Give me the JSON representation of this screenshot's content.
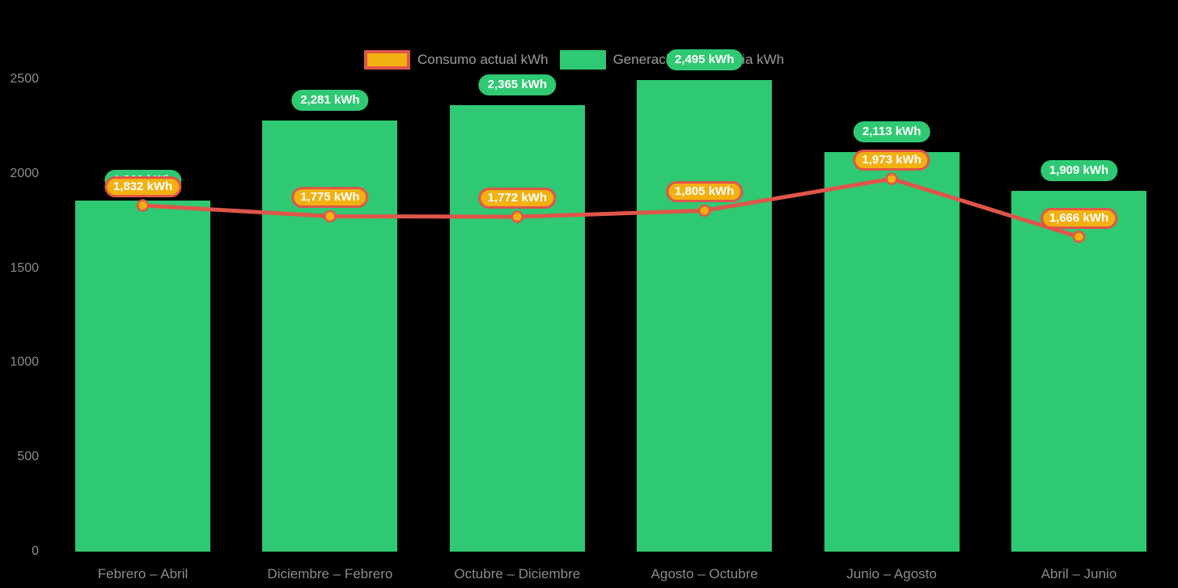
{
  "page": {
    "background": "#000000"
  },
  "legend": {
    "items": [
      {
        "id": "consumo",
        "label": "Consumo actual kWh",
        "swatch_fill": "#F3B011",
        "swatch_border": "#E0554A"
      },
      {
        "id": "generacion",
        "label": "Generación de energia kWh",
        "swatch_fill": "#2FC973",
        "swatch_border": null
      }
    ]
  },
  "chart_data": {
    "type": "bar",
    "subtype": "bars-with-line-overlay",
    "title": "",
    "categories": [
      "Febrero – Abril",
      "Diciembre – Febrero",
      "Octubre – Diciembre",
      "Agosto – Octubre",
      "Junio – Agosto",
      "Abril – Junio"
    ],
    "series": [
      {
        "name": "Generación de energia kWh",
        "type": "bar",
        "color": "#2FC973",
        "values": [
          1860,
          2281,
          2365,
          2495,
          2113,
          1909
        ],
        "data_labels": [
          "1,860 kWh",
          "2,281 kWh",
          "2,365 kWh",
          "2,495 kWh",
          "2,113 kWh",
          "1,909 kWh"
        ],
        "label_fill": "#2FC973",
        "label_text_color": "#FFFFFF"
      },
      {
        "name": "Consumo actual kWh",
        "type": "line",
        "color": "#E0554A",
        "marker_fill": "#F3B011",
        "marker_border": "#E0554A",
        "values": [
          1832,
          1775,
          1772,
          1805,
          1973,
          1666
        ],
        "data_labels": [
          "1,832 kWh",
          "1,775 kWh",
          "1,772 kWh",
          "1,805 kWh",
          "1,973 kWh",
          "1,666 kWh"
        ],
        "label_fill": "#F3B011",
        "label_border": "#E0554A",
        "label_text_color": "#FFFFFF"
      }
    ],
    "y_axis": {
      "min": 0,
      "max": 2500,
      "ticks": [
        0,
        500,
        1000,
        1500,
        2000,
        2500
      ],
      "label_color": "#8B8B8B"
    },
    "x_axis": {
      "label_color": "#8B8B8B"
    },
    "legend_text_color": "#9B9B9B",
    "grid": false,
    "legend_position": "top-center"
  }
}
